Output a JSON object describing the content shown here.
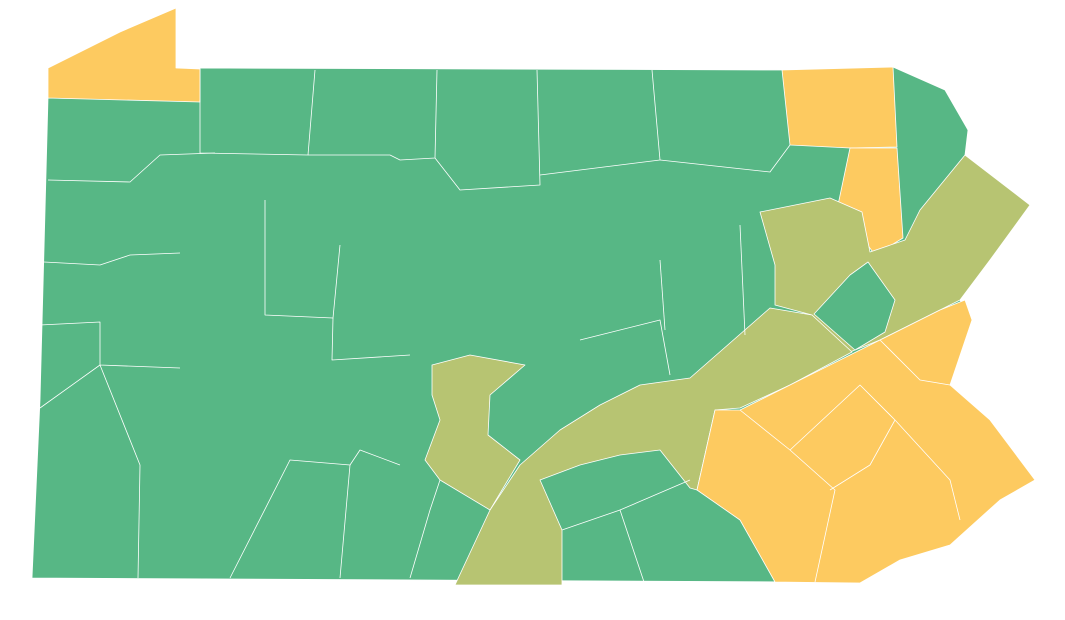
{
  "map": {
    "fills": [
      "#57b785",
      "#b7c472",
      "#fdca60"
    ],
    "border_color": "#ffffff"
  }
}
